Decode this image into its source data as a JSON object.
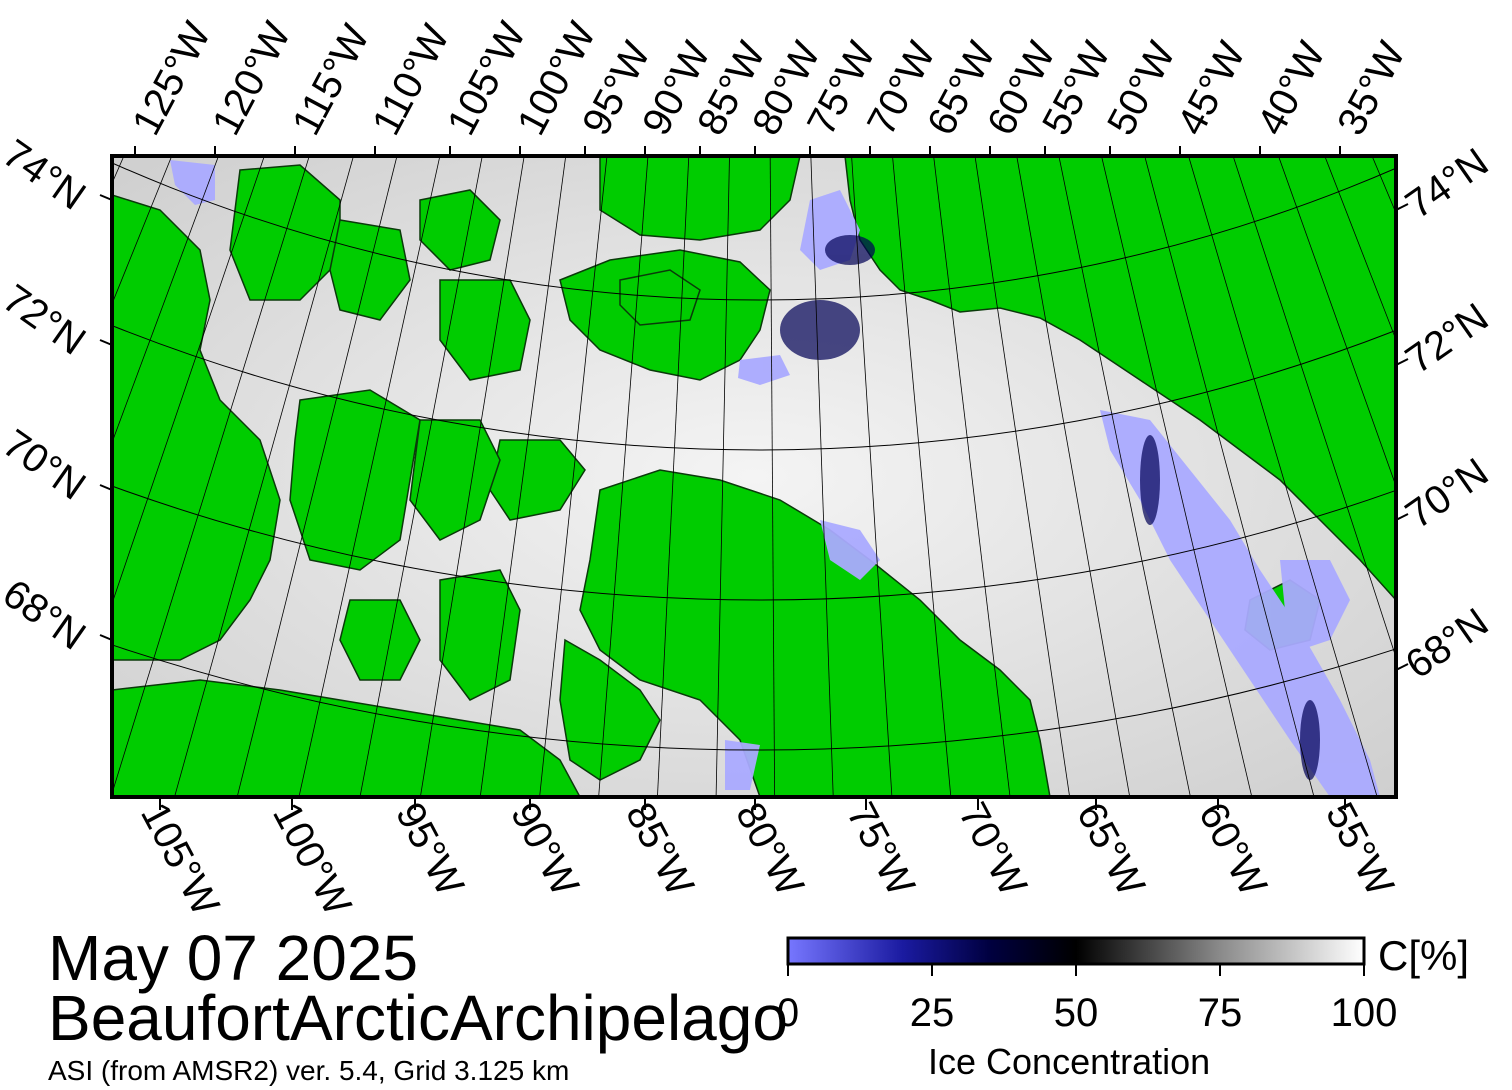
{
  "map": {
    "date": "May 07 2025",
    "region": "BeaufortArcticArchipelago",
    "source": "ASI (from AMSR2) ver. 5.4,  Grid 3.125 km",
    "colors": {
      "land": "#00cc00",
      "open_water": "#aaaaff",
      "ice_low": "#00003a",
      "ice_mid": "#000000",
      "ice_high": "#ffffff",
      "frame": "#000000"
    },
    "top_lon_labels": [
      "125°W",
      "120°W",
      "115°W",
      "110°W",
      "105°W",
      "100°W",
      "95°W",
      "90°W",
      "85°W",
      "80°W",
      "75°W",
      "70°W",
      "65°W",
      "60°W",
      "55°W",
      "50°W",
      "45°W",
      "40°W",
      "35°W"
    ],
    "bottom_lon_labels": [
      "105°W",
      "100°W",
      "95°W",
      "90°W",
      "85°W",
      "80°W",
      "75°W",
      "70°W",
      "65°W",
      "60°W",
      "55°W"
    ],
    "left_lat_labels": [
      "74°N",
      "72°N",
      "70°N",
      "68°N"
    ],
    "right_lat_labels": [
      "74°N",
      "72°N",
      "70°N",
      "68°N"
    ]
  },
  "colorbar": {
    "title": "Ice Concentration",
    "unit": "C[%]",
    "ticks": [
      "0",
      "25",
      "50",
      "75",
      "100"
    ],
    "tick_values": [
      0,
      25,
      50,
      75,
      100
    ],
    "range": [
      0,
      100
    ]
  }
}
